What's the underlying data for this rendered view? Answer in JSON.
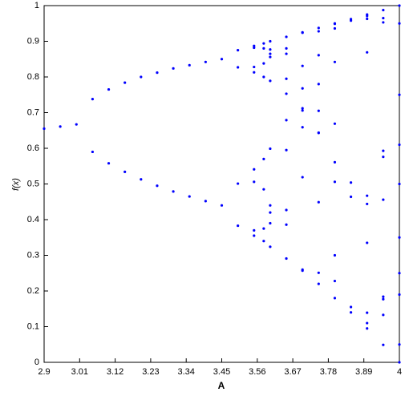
{
  "chart_data": {
    "type": "scatter",
    "xlabel": "A",
    "ylabel": "f(x)",
    "color": "#0000ff",
    "xlim": [
      2.9,
      4
    ],
    "xticks": [
      2.9,
      3.01,
      3.12,
      3.23,
      3.34,
      3.45,
      3.56,
      3.67,
      3.78,
      3.89,
      4
    ],
    "ylim": [
      0,
      1
    ],
    "yticks": [
      0,
      0.1,
      0.2,
      0.3,
      0.4,
      0.5,
      0.6,
      0.7,
      0.8,
      0.9,
      1
    ],
    "x": [
      2.9,
      2.95,
      3.0,
      3.05,
      3.05,
      3.1,
      3.1,
      3.15,
      3.15,
      3.2,
      3.2,
      3.25,
      3.25,
      3.3,
      3.3,
      3.35,
      3.35,
      3.4,
      3.4,
      3.45,
      3.45,
      3.5,
      3.5,
      3.5,
      3.5,
      3.55,
      3.55,
      3.55,
      3.55,
      3.55,
      3.55,
      3.55,
      3.55,
      3.58,
      3.58,
      3.58,
      3.58,
      3.58,
      3.58,
      3.58,
      3.58,
      3.6,
      3.6,
      3.6,
      3.6,
      3.6,
      3.6,
      3.6,
      3.6,
      3.6,
      3.6,
      3.65,
      3.65,
      3.65,
      3.65,
      3.65,
      3.65,
      3.65,
      3.65,
      3.65,
      3.65,
      3.7,
      3.7,
      3.7,
      3.7,
      3.7,
      3.7,
      3.7,
      3.7,
      3.7,
      3.7,
      3.75,
      3.75,
      3.75,
      3.75,
      3.75,
      3.75,
      3.75,
      3.75,
      3.75,
      3.75,
      3.8,
      3.8,
      3.8,
      3.8,
      3.8,
      3.8,
      3.8,
      3.8,
      3.8,
      3.8,
      3.85,
      3.85,
      3.85,
      3.85,
      3.85,
      3.85,
      3.9,
      3.9,
      3.9,
      3.9,
      3.9,
      3.9,
      3.9,
      3.9,
      3.9,
      3.9,
      3.95,
      3.95,
      3.95,
      3.95,
      3.95,
      3.95,
      3.95,
      3.95,
      3.95,
      3.95,
      4,
      4,
      4,
      4,
      4,
      4,
      4,
      4,
      4,
      4
    ],
    "values": [
      0.655,
      0.661,
      0.667,
      0.738,
      0.59,
      0.765,
      0.558,
      0.784,
      0.534,
      0.8,
      0.513,
      0.812,
      0.495,
      0.824,
      0.479,
      0.833,
      0.465,
      0.842,
      0.452,
      0.85,
      0.44,
      0.875,
      0.383,
      0.827,
      0.501,
      0.887,
      0.355,
      0.813,
      0.541,
      0.882,
      0.37,
      0.828,
      0.506,
      0.894,
      0.34,
      0.8,
      0.57,
      0.88,
      0.375,
      0.838,
      0.485,
      0.9,
      0.324,
      0.789,
      0.599,
      0.865,
      0.42,
      0.877,
      0.39,
      0.856,
      0.44,
      0.9125,
      0.291,
      0.753,
      0.679,
      0.795,
      0.595,
      0.88,
      0.386,
      0.865,
      0.427,
      0.925,
      0.257,
      0.706,
      0.768,
      0.659,
      0.831,
      0.519,
      0.924,
      0.26,
      0.712,
      0.9375,
      0.22,
      0.643,
      0.861,
      0.449,
      0.928,
      0.251,
      0.705,
      0.78,
      0.644,
      0.95,
      0.18,
      0.561,
      0.936,
      0.228,
      0.669,
      0.842,
      0.506,
      0.949,
      0.3,
      0.962,
      0.14,
      0.464,
      0.958,
      0.155,
      0.504,
      0.975,
      0.095,
      0.335,
      0.869,
      0.444,
      0.963,
      0.139,
      0.467,
      0.971,
      0.11,
      0.9875,
      0.049,
      0.184,
      0.593,
      0.953,
      0.177,
      0.576,
      0.965,
      0.133,
      0.456,
      1,
      0,
      0.25,
      0.75,
      0.5,
      0.95,
      0.19,
      0.61,
      0.05,
      0.35
    ]
  }
}
